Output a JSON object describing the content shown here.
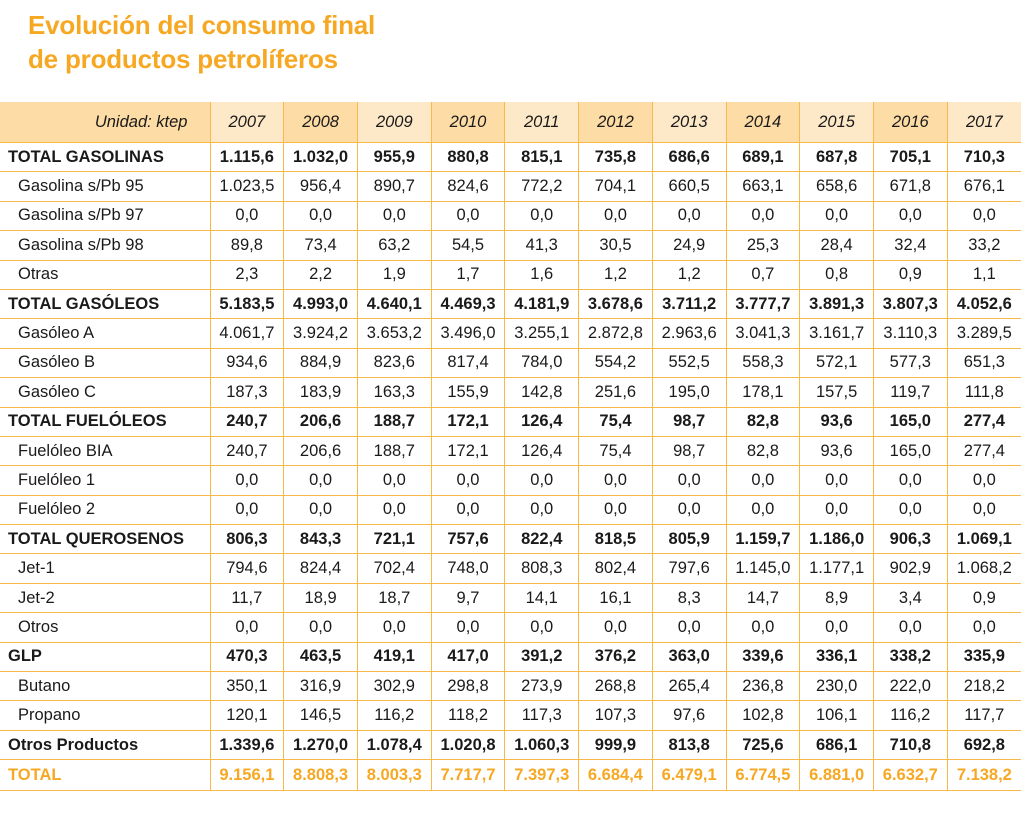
{
  "title": {
    "line1": "Evolución del consumo final",
    "line2": "de productos petrolíferos"
  },
  "colors": {
    "accent": "#f7a823",
    "header_light": "#fde9c8",
    "header_dark": "#fddca5",
    "grid": "#f9b94a"
  },
  "table": {
    "unit_label": "Unidad: ktep",
    "years": [
      "2007",
      "2008",
      "2009",
      "2010",
      "2011",
      "2012",
      "2013",
      "2014",
      "2015",
      "2016",
      "2017"
    ],
    "rows": [
      {
        "type": "total",
        "label": "TOTAL GASOLINAS",
        "values": [
          "1.115,6",
          "1.032,0",
          "955,9",
          "880,8",
          "815,1",
          "735,8",
          "686,6",
          "689,1",
          "687,8",
          "705,1",
          "710,3"
        ]
      },
      {
        "type": "item",
        "label": "Gasolina s/Pb 95",
        "values": [
          "1.023,5",
          "956,4",
          "890,7",
          "824,6",
          "772,2",
          "704,1",
          "660,5",
          "663,1",
          "658,6",
          "671,8",
          "676,1"
        ]
      },
      {
        "type": "item",
        "label": "Gasolina s/Pb 97",
        "values": [
          "0,0",
          "0,0",
          "0,0",
          "0,0",
          "0,0",
          "0,0",
          "0,0",
          "0,0",
          "0,0",
          "0,0",
          "0,0"
        ]
      },
      {
        "type": "item",
        "label": "Gasolina s/Pb 98",
        "values": [
          "89,8",
          "73,4",
          "63,2",
          "54,5",
          "41,3",
          "30,5",
          "24,9",
          "25,3",
          "28,4",
          "32,4",
          "33,2"
        ]
      },
      {
        "type": "item",
        "label": "Otras",
        "values": [
          "2,3",
          "2,2",
          "1,9",
          "1,7",
          "1,6",
          "1,2",
          "1,2",
          "0,7",
          "0,8",
          "0,9",
          "1,1"
        ]
      },
      {
        "type": "total",
        "label": "TOTAL GASÓLEOS",
        "values": [
          "5.183,5",
          "4.993,0",
          "4.640,1",
          "4.469,3",
          "4.181,9",
          "3.678,6",
          "3.711,2",
          "3.777,7",
          "3.891,3",
          "3.807,3",
          "4.052,6"
        ]
      },
      {
        "type": "item",
        "label": "Gasóleo A",
        "values": [
          "4.061,7",
          "3.924,2",
          "3.653,2",
          "3.496,0",
          "3.255,1",
          "2.872,8",
          "2.963,6",
          "3.041,3",
          "3.161,7",
          "3.110,3",
          "3.289,5"
        ]
      },
      {
        "type": "item",
        "label": "Gasóleo B",
        "values": [
          "934,6",
          "884,9",
          "823,6",
          "817,4",
          "784,0",
          "554,2",
          "552,5",
          "558,3",
          "572,1",
          "577,3",
          "651,3"
        ]
      },
      {
        "type": "item",
        "label": "Gasóleo C",
        "values": [
          "187,3",
          "183,9",
          "163,3",
          "155,9",
          "142,8",
          "251,6",
          "195,0",
          "178,1",
          "157,5",
          "119,7",
          "111,8"
        ]
      },
      {
        "type": "total",
        "label": "TOTAL FUELÓLEOS",
        "values": [
          "240,7",
          "206,6",
          "188,7",
          "172,1",
          "126,4",
          "75,4",
          "98,7",
          "82,8",
          "93,6",
          "165,0",
          "277,4"
        ]
      },
      {
        "type": "item",
        "label": "Fuelóleo BIA",
        "values": [
          "240,7",
          "206,6",
          "188,7",
          "172,1",
          "126,4",
          "75,4",
          "98,7",
          "82,8",
          "93,6",
          "165,0",
          "277,4"
        ]
      },
      {
        "type": "item",
        "label": "Fuelóleo 1",
        "values": [
          "0,0",
          "0,0",
          "0,0",
          "0,0",
          "0,0",
          "0,0",
          "0,0",
          "0,0",
          "0,0",
          "0,0",
          "0,0"
        ]
      },
      {
        "type": "item",
        "label": "Fuelóleo 2",
        "values": [
          "0,0",
          "0,0",
          "0,0",
          "0,0",
          "0,0",
          "0,0",
          "0,0",
          "0,0",
          "0,0",
          "0,0",
          "0,0"
        ]
      },
      {
        "type": "total",
        "label": "TOTAL QUEROSENOS",
        "values": [
          "806,3",
          "843,3",
          "721,1",
          "757,6",
          "822,4",
          "818,5",
          "805,9",
          "1.159,7",
          "1.186,0",
          "906,3",
          "1.069,1"
        ]
      },
      {
        "type": "item",
        "label": "Jet-1",
        "values": [
          "794,6",
          "824,4",
          "702,4",
          "748,0",
          "808,3",
          "802,4",
          "797,6",
          "1.145,0",
          "1.177,1",
          "902,9",
          "1.068,2"
        ]
      },
      {
        "type": "item",
        "label": "Jet-2",
        "values": [
          "11,7",
          "18,9",
          "18,7",
          "9,7",
          "14,1",
          "16,1",
          "8,3",
          "14,7",
          "8,9",
          "3,4",
          "0,9"
        ]
      },
      {
        "type": "item",
        "label": "Otros",
        "values": [
          "0,0",
          "0,0",
          "0,0",
          "0,0",
          "0,0",
          "0,0",
          "0,0",
          "0,0",
          "0,0",
          "0,0",
          "0,0"
        ]
      },
      {
        "type": "total",
        "label": "GLP",
        "values": [
          "470,3",
          "463,5",
          "419,1",
          "417,0",
          "391,2",
          "376,2",
          "363,0",
          "339,6",
          "336,1",
          "338,2",
          "335,9"
        ]
      },
      {
        "type": "item",
        "label": "Butano",
        "values": [
          "350,1",
          "316,9",
          "302,9",
          "298,8",
          "273,9",
          "268,8",
          "265,4",
          "236,8",
          "230,0",
          "222,0",
          "218,2"
        ]
      },
      {
        "type": "item",
        "label": "Propano",
        "values": [
          "120,1",
          "146,5",
          "116,2",
          "118,2",
          "117,3",
          "107,3",
          "97,6",
          "102,8",
          "106,1",
          "116,2",
          "117,7"
        ]
      },
      {
        "type": "total",
        "label": "Otros Productos",
        "values": [
          "1.339,6",
          "1.270,0",
          "1.078,4",
          "1.020,8",
          "1.060,3",
          "999,9",
          "813,8",
          "725,6",
          "686,1",
          "710,8",
          "692,8"
        ]
      },
      {
        "type": "grand",
        "label": "TOTAL",
        "values": [
          "9.156,1",
          "8.808,3",
          "8.003,3",
          "7.717,7",
          "7.397,3",
          "6.684,4",
          "6.479,1",
          "6.774,5",
          "6.881,0",
          "6.632,7",
          "7.138,2"
        ]
      }
    ]
  }
}
